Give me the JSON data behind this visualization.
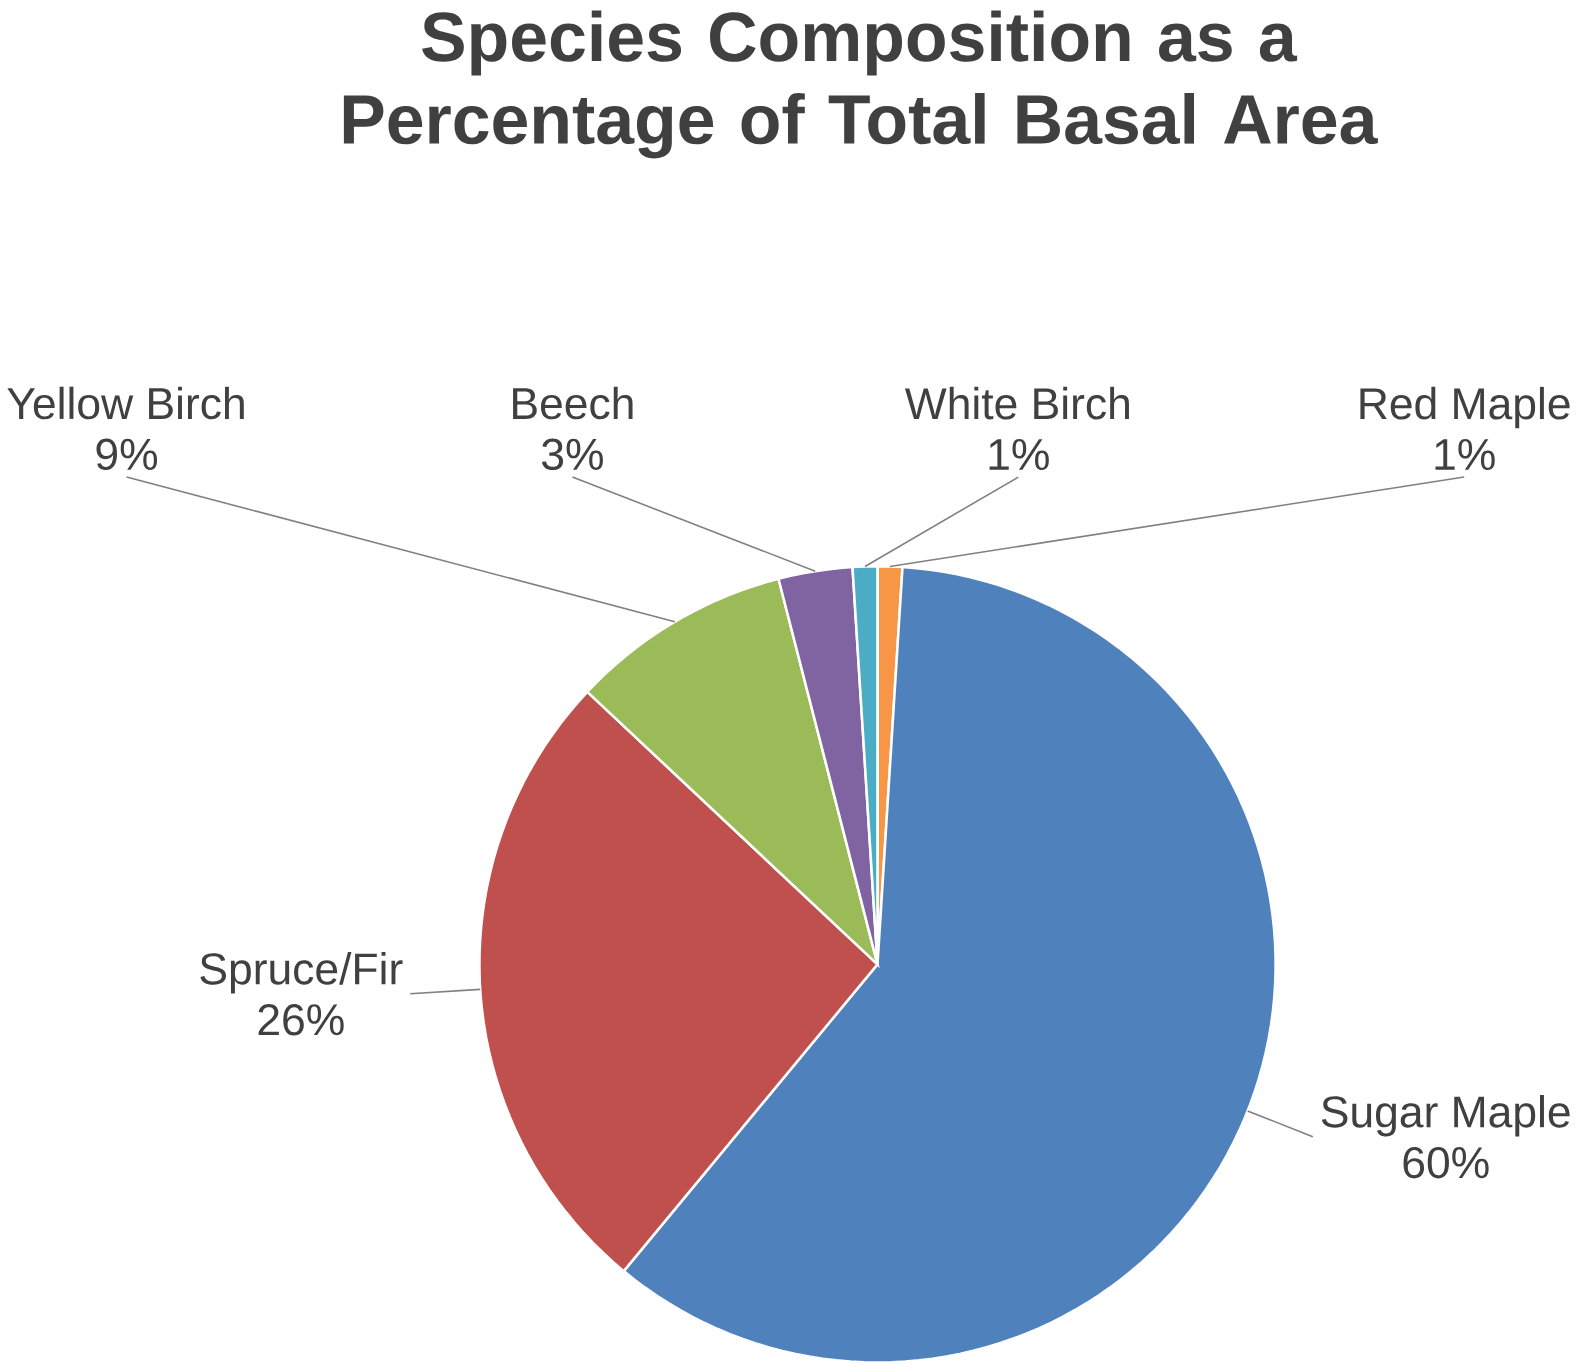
{
  "chart_data": {
    "type": "pie",
    "title": "Species Composition as a Percentage of Total Basal Area",
    "categories": [
      "Red Maple",
      "Sugar Maple",
      "Spruce/Fir",
      "Yellow Birch",
      "Beech",
      "White Birch"
    ],
    "values": [
      1,
      60,
      26,
      9,
      3,
      1
    ],
    "colors": [
      "#f79646",
      "#4f81bd",
      "#c0504d",
      "#9bbb59",
      "#8064a2",
      "#4bacc6"
    ],
    "value_labels": [
      "1%",
      "60%",
      "26%",
      "9%",
      "3%",
      "1%"
    ]
  }
}
